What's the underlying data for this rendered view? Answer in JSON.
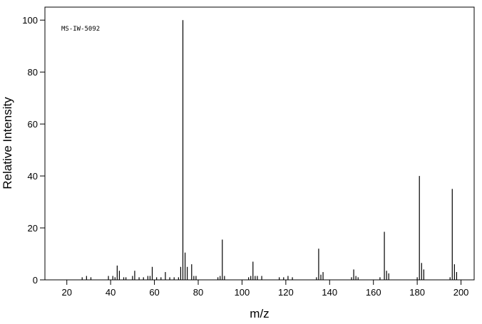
{
  "chart_data": {
    "type": "spectrum",
    "annotation": "MS-IW-5092",
    "x_label": "m/z",
    "y_label": "Relative Intensity",
    "color": "#000000",
    "xlim": [
      10,
      206
    ],
    "ylim": [
      0,
      105
    ],
    "xticks": [
      20,
      40,
      60,
      80,
      100,
      120,
      140,
      160,
      180,
      200
    ],
    "yticks": [
      0,
      20,
      40,
      60,
      80,
      100
    ],
    "x": [
      27,
      29,
      31,
      39,
      41,
      42,
      43,
      44,
      46,
      47,
      50,
      51,
      53,
      55,
      57,
      58,
      59,
      61,
      63,
      65,
      67,
      69,
      71,
      72,
      73,
      74,
      75,
      77,
      78,
      79,
      89,
      90,
      91,
      92,
      103,
      104,
      105,
      106,
      107,
      109,
      117,
      119,
      121,
      123,
      134,
      135,
      136,
      137,
      150,
      151,
      152,
      153,
      163,
      165,
      166,
      167,
      180,
      181,
      182,
      183,
      195,
      196,
      197,
      198
    ],
    "values": [
      1,
      1.5,
      1,
      1.5,
      1.5,
      1,
      5.5,
      3.5,
      1,
      1,
      1.5,
      3.5,
      1,
      1,
      1.5,
      1.5,
      5,
      1,
      1,
      3,
      1,
      1,
      1,
      5,
      100,
      10.5,
      5,
      6,
      1.5,
      1.5,
      1,
      1.5,
      15.5,
      1.5,
      1,
      1.5,
      7,
      1.5,
      1.5,
      1.5,
      1,
      1,
      1.5,
      1,
      1,
      12,
      2,
      3,
      1,
      4,
      1.5,
      1,
      1,
      18.5,
      3.5,
      2.5,
      1,
      40,
      6.5,
      4,
      1,
      35,
      6,
      3
    ]
  }
}
